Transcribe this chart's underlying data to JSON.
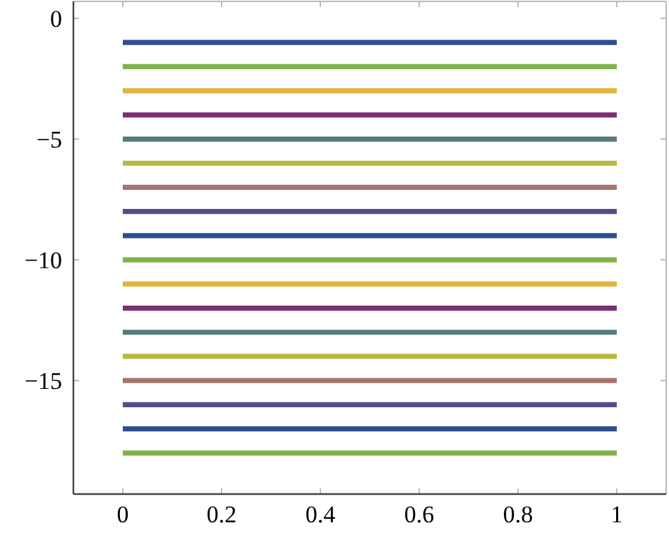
{
  "chart_data": {
    "type": "line",
    "xlim": [
      -0.1,
      1.1
    ],
    "ylim": [
      -19.7,
      0.7
    ],
    "x": [
      0,
      1
    ],
    "xticks": [
      0,
      0.2,
      0.4,
      0.6,
      0.8,
      1
    ],
    "yticks": [
      {
        "value": -15,
        "label": "−15"
      },
      {
        "value": -10,
        "label": "−10"
      },
      {
        "value": -5,
        "label": "−5"
      },
      0
    ],
    "grid": false,
    "marker": "none",
    "line_style": "solid",
    "series": [
      {
        "color": "#2e4e8c",
        "values": [
          -1,
          -1
        ]
      },
      {
        "color": "#7fb24a",
        "values": [
          -2,
          -2
        ]
      },
      {
        "color": "#e3b23c",
        "values": [
          -3,
          -3
        ]
      },
      {
        "color": "#7b2e72",
        "values": [
          -4,
          -4
        ]
      },
      {
        "color": "#567a7a",
        "values": [
          -5,
          -5
        ]
      },
      {
        "color": "#b8b840",
        "values": [
          -6,
          -6
        ]
      },
      {
        "color": "#a8736e",
        "values": [
          -7,
          -7
        ]
      },
      {
        "color": "#5a4a8a",
        "values": [
          -8,
          -8
        ]
      },
      {
        "color": "#2e4e8c",
        "values": [
          -9,
          -9
        ]
      },
      {
        "color": "#7fb24a",
        "values": [
          -10,
          -10
        ]
      },
      {
        "color": "#e3b23c",
        "values": [
          -11,
          -11
        ]
      },
      {
        "color": "#7b2e72",
        "values": [
          -12,
          -12
        ]
      },
      {
        "color": "#567a7a",
        "values": [
          -13,
          -13
        ]
      },
      {
        "color": "#b8b840",
        "values": [
          -14,
          -14
        ]
      },
      {
        "color": "#a8736e",
        "values": [
          -15,
          -15
        ]
      },
      {
        "color": "#5a4a8a",
        "values": [
          -16,
          -16
        ]
      },
      {
        "color": "#2e4e8c",
        "values": [
          -17,
          -17
        ]
      },
      {
        "color": "#7fb24a",
        "values": [
          -18,
          -18
        ]
      }
    ]
  }
}
